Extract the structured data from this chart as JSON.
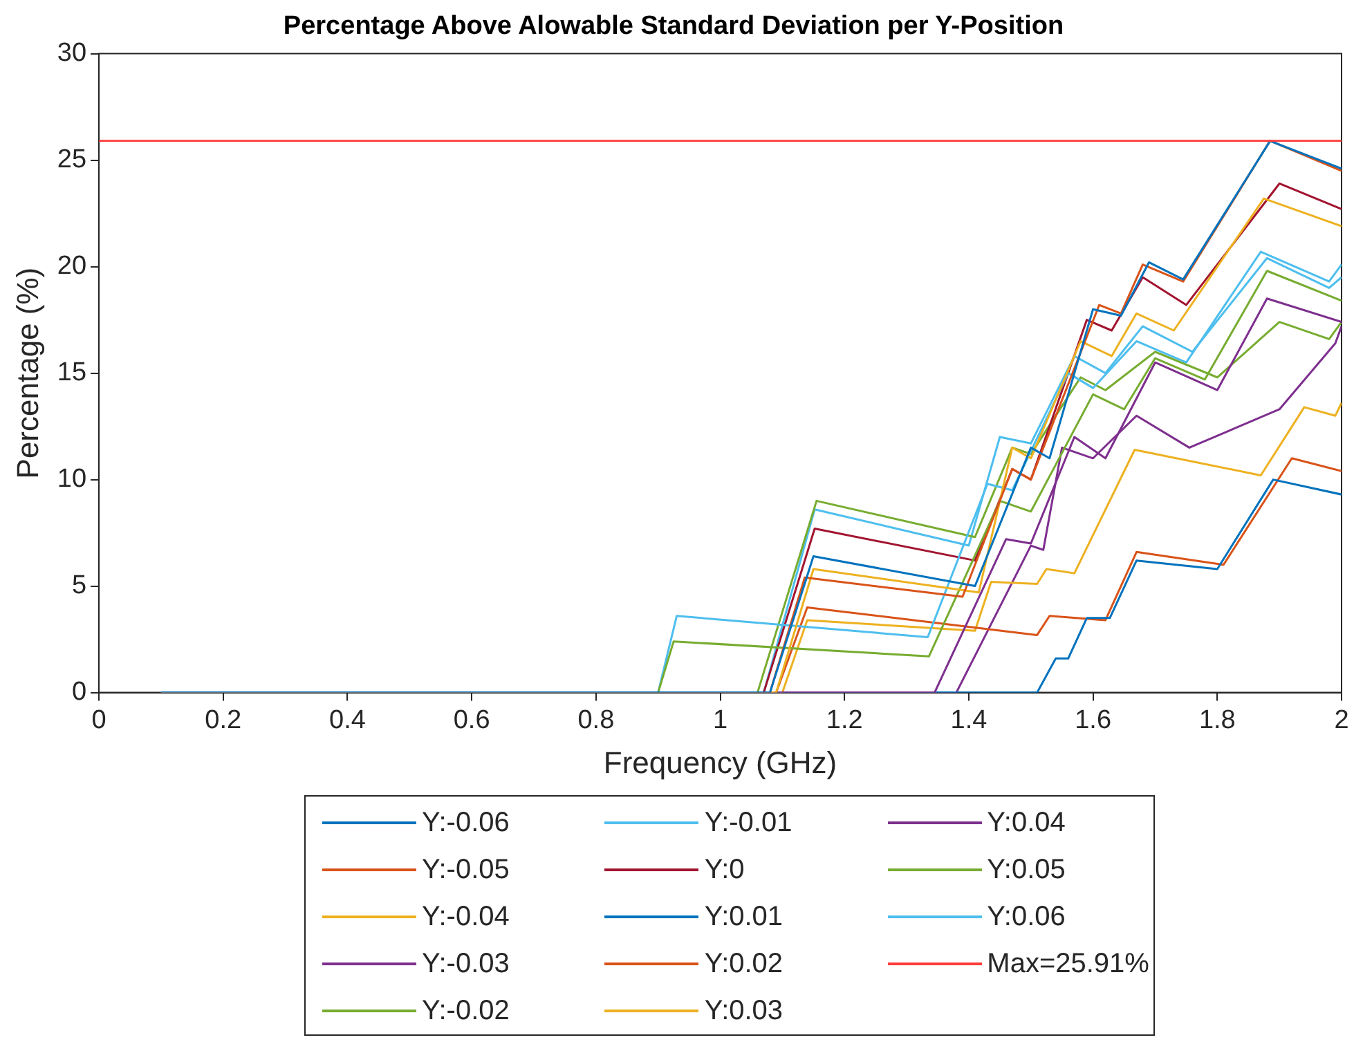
{
  "chart_data": {
    "type": "line",
    "title": "Percentage Above Alowable Standard Deviation per Y-Position",
    "xlabel": "Frequency (GHz)",
    "ylabel": "Percentage (%)",
    "xlim": [
      0,
      2
    ],
    "ylim": [
      0,
      30
    ],
    "xticks": [
      0,
      0.2,
      0.4,
      0.6,
      0.8,
      1,
      1.2,
      1.4,
      1.6,
      1.8,
      2
    ],
    "yticks": [
      0,
      5,
      10,
      15,
      20,
      25,
      30
    ],
    "legend": "bottom",
    "grid": false,
    "series": [
      {
        "name": "Y:-0.06",
        "color": "#0072bd",
        "x": [
          0.1,
          1.08,
          1.15,
          1.41,
          1.5,
          1.53,
          1.6,
          1.645,
          1.69,
          1.745,
          1.885,
          2
        ],
        "values": [
          0,
          0,
          6.4,
          5.0,
          11.5,
          11.0,
          18.0,
          17.7,
          20.2,
          19.4,
          25.9,
          24.6
        ]
      },
      {
        "name": "Y:-0.05",
        "color": "#d95319",
        "x": [
          0.1,
          1.08,
          1.136,
          1.39,
          1.47,
          1.5,
          1.61,
          1.645,
          1.68,
          1.745,
          1.885,
          2
        ],
        "values": [
          0,
          0,
          5.4,
          4.5,
          10.5,
          10.0,
          18.2,
          17.8,
          20.1,
          19.3,
          25.91,
          24.5
        ]
      },
      {
        "name": "Y:-0.04",
        "color": "#edb120",
        "x": [
          0.1,
          1.09,
          1.15,
          1.416,
          1.47,
          1.5,
          1.58,
          1.63,
          1.67,
          1.73,
          1.875,
          2
        ],
        "values": [
          0,
          0,
          5.8,
          4.7,
          11.5,
          11.0,
          16.5,
          15.8,
          17.8,
          17.0,
          23.2,
          21.9
        ]
      },
      {
        "name": "Y:-0.03",
        "color": "#7e2f8e",
        "x": [
          0.1,
          1.345,
          1.46,
          1.5,
          1.57,
          1.62,
          1.7,
          1.8,
          1.88,
          2
        ],
        "values": [
          0,
          0,
          7.2,
          7.0,
          12.0,
          11.0,
          15.5,
          14.2,
          18.5,
          17.4
        ]
      },
      {
        "name": "Y:-0.02",
        "color": "#77ac30",
        "x": [
          0.1,
          0.9,
          0.925,
          1.336,
          1.45,
          1.5,
          1.6,
          1.65,
          1.7,
          1.78,
          1.88,
          2
        ],
        "values": [
          0,
          0,
          2.4,
          1.7,
          9.0,
          8.5,
          14.0,
          13.3,
          15.7,
          14.7,
          19.8,
          18.4
        ]
      },
      {
        "name": "Y:-0.01",
        "color": "#4dbeee",
        "x": [
          0.1,
          0.9,
          0.93,
          1.334,
          1.43,
          1.47,
          1.56,
          1.6,
          1.67,
          1.75,
          1.87,
          1.98,
          2
        ],
        "values": [
          0,
          0,
          3.6,
          2.6,
          9.8,
          9.5,
          15.0,
          14.3,
          16.5,
          15.5,
          20.7,
          19.3,
          20.1
        ]
      },
      {
        "name": "Y:0",
        "color": "#a2142f",
        "x": [
          0.1,
          1.07,
          1.152,
          1.41,
          1.47,
          1.5,
          1.59,
          1.63,
          1.68,
          1.75,
          1.9,
          2
        ],
        "values": [
          0,
          0,
          7.7,
          6.2,
          10.5,
          10.0,
          17.5,
          17.0,
          19.5,
          18.2,
          23.9,
          22.7
        ]
      },
      {
        "name": "Y:0.01",
        "color": "#0072bd",
        "x": [
          0.1,
          1.51,
          1.54,
          1.56,
          1.59,
          1.627,
          1.67,
          1.8,
          1.89,
          2
        ],
        "values": [
          0,
          0,
          1.6,
          1.6,
          3.5,
          3.5,
          6.2,
          5.8,
          10.0,
          9.3
        ]
      },
      {
        "name": "Y:0.02",
        "color": "#d95319",
        "x": [
          0.1,
          1.09,
          1.14,
          1.51,
          1.53,
          1.62,
          1.67,
          1.81,
          1.92,
          2
        ],
        "values": [
          0,
          0,
          4.0,
          2.7,
          3.6,
          3.4,
          6.6,
          6.0,
          11.0,
          10.4
        ]
      },
      {
        "name": "Y:0.03",
        "color": "#edb120",
        "x": [
          0.1,
          1.1,
          1.14,
          1.41,
          1.436,
          1.51,
          1.525,
          1.57,
          1.667,
          1.87,
          1.94,
          1.99,
          2
        ],
        "values": [
          0,
          0,
          3.4,
          2.9,
          5.2,
          5.1,
          5.8,
          5.6,
          11.4,
          10.2,
          13.4,
          13.0,
          13.6
        ]
      },
      {
        "name": "Y:0.04",
        "color": "#7e2f8e",
        "x": [
          0.1,
          1.38,
          1.5,
          1.52,
          1.55,
          1.6,
          1.67,
          1.755,
          1.9,
          1.99,
          2
        ],
        "values": [
          0,
          0,
          6.9,
          6.7,
          11.5,
          11.0,
          13.0,
          11.5,
          13.3,
          16.4,
          17.2
        ]
      },
      {
        "name": "Y:0.05",
        "color": "#77ac30",
        "x": [
          0.1,
          1.06,
          1.155,
          1.41,
          1.47,
          1.5,
          1.58,
          1.62,
          1.7,
          1.8,
          1.9,
          1.98,
          2
        ],
        "values": [
          0,
          0,
          9.0,
          7.3,
          11.5,
          11.2,
          14.8,
          14.2,
          16.0,
          14.8,
          17.4,
          16.6,
          17.4
        ]
      },
      {
        "name": "Y:0.06",
        "color": "#4dbeee",
        "x": [
          0.1,
          1.07,
          1.152,
          1.4,
          1.45,
          1.5,
          1.57,
          1.62,
          1.68,
          1.76,
          1.88,
          1.98,
          2
        ],
        "values": [
          0,
          0,
          8.6,
          6.9,
          12.0,
          11.7,
          15.8,
          15.0,
          17.2,
          16.0,
          20.4,
          19.0,
          19.5
        ]
      }
    ],
    "ref_lines": [
      {
        "axis": "y",
        "value": 25.91,
        "label": "Max=25.91%",
        "color": "#ff3b3b"
      }
    ]
  }
}
